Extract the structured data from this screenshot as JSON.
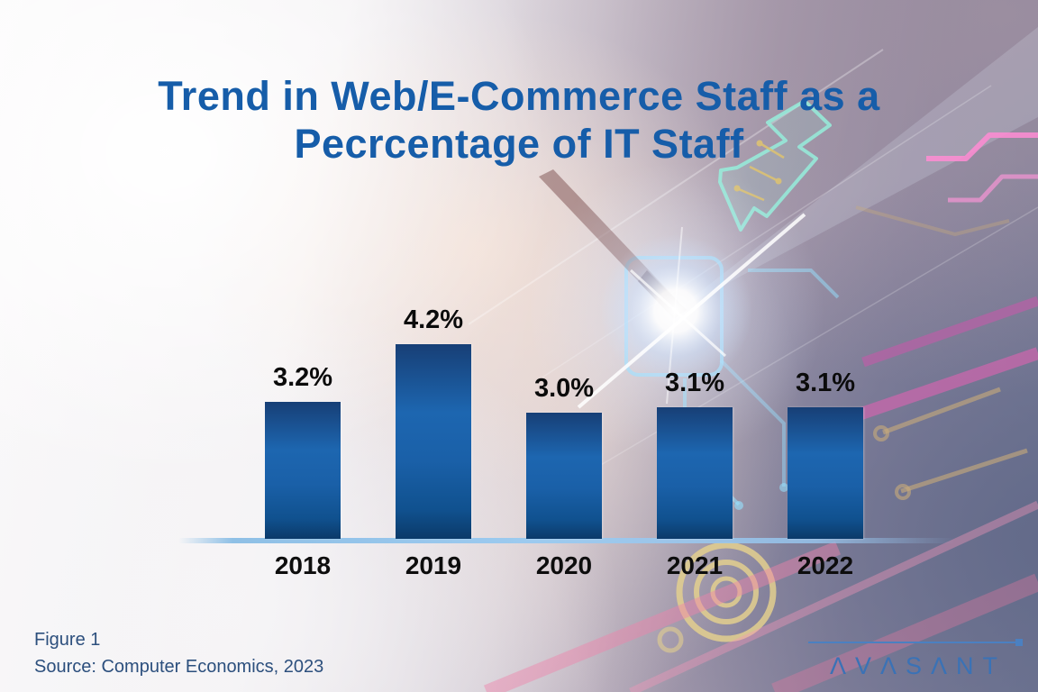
{
  "header": {
    "title_line1": "Trend in Web/E-Commerce Staff as a",
    "title_line2": "Pecrcentage of IT Staff"
  },
  "chart_data": {
    "type": "bar",
    "title": "Trend in Web/E-Commerce Staff as a Pecrcentage of IT Staff",
    "categories": [
      "2018",
      "2019",
      "2020",
      "2021",
      "2022"
    ],
    "values": [
      3.2,
      4.2,
      3.0,
      3.1,
      3.1
    ],
    "data_labels": [
      "3.2%",
      "4.2%",
      "3.0%",
      "3.1%",
      "3.1%"
    ],
    "xlabel": "",
    "ylabel": "",
    "ylim": [
      0.8,
      4.2
    ],
    "grid": false,
    "legend_position": "none",
    "bar_color": "#1b61a9",
    "axis_line_color": "#8fc0e6",
    "data_label_color": "#0b0b0b"
  },
  "footer": {
    "figure_label": "Figure 1",
    "source": "Source: Computer Economics, 2023"
  },
  "brand": {
    "name": "AVASANT",
    "display": "ΛVΛSΛNT"
  },
  "colors": {
    "title_blue": "#165da9",
    "footer_text": "#2c4f7d",
    "brand_blue": "#3a72b6"
  }
}
